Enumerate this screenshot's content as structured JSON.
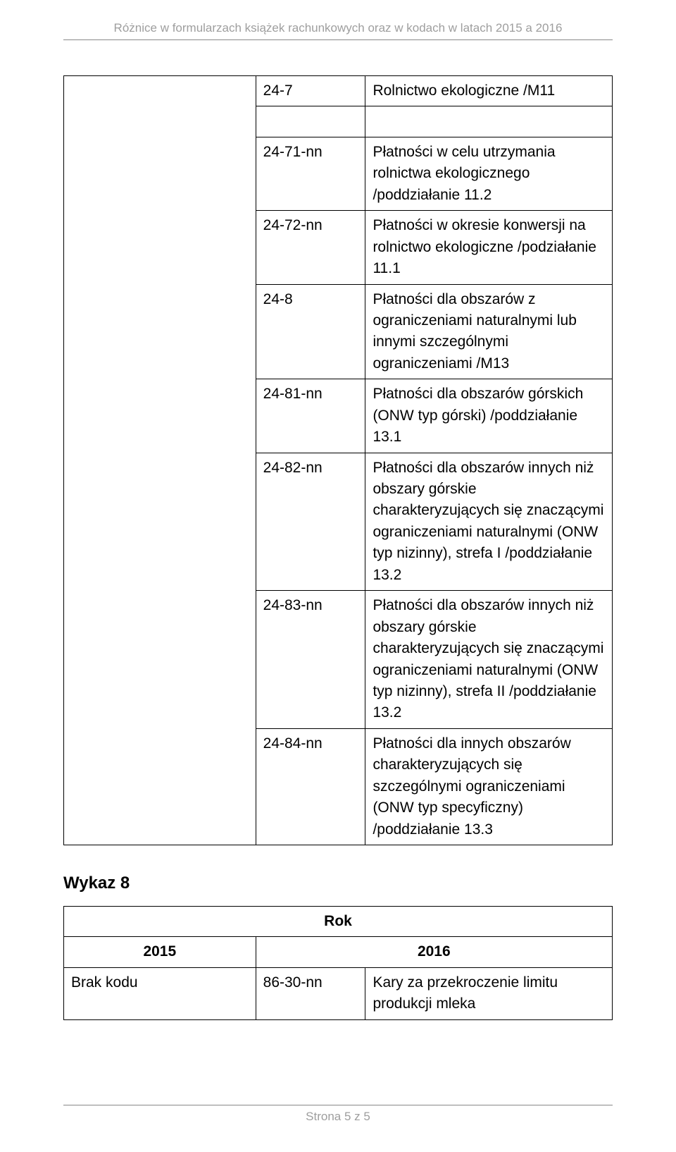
{
  "header": "Różnice w formularzach książek rachunkowych oraz w kodach w latach 2015 a 2016",
  "main_table": {
    "rows": [
      {
        "code": "24-7",
        "desc": "Rolnictwo ekologiczne /M11",
        "spacer_after": true
      },
      {
        "code": "24-71-nn",
        "desc": "Płatności w celu utrzymania rolnictwa ekologicznego /poddziałanie 11.2"
      },
      {
        "code": "24-72-nn",
        "desc": "Płatności w okresie konwersji na rolnictwo ekologiczne /podziałanie 11.1"
      },
      {
        "code": "24-8",
        "desc": "Płatności dla obszarów z ograniczeniami naturalnymi lub innymi szczególnymi ograniczeniami /M13"
      },
      {
        "code": "24-81-nn",
        "desc": "Płatności dla obszarów górskich (ONW typ górski) /poddziałanie 13.1"
      },
      {
        "code": "24-82-nn",
        "desc": "Płatności dla obszarów innych niż obszary górskie charakteryzujących się znaczącymi ograniczeniami naturalnymi (ONW typ nizinny), strefa I /poddziałanie 13.2"
      },
      {
        "code": "24-83-nn",
        "desc": "Płatności dla obszarów innych niż obszary górskie charakteryzujących się znaczącymi ograniczeniami naturalnymi (ONW typ nizinny), strefa II /poddziałanie 13.2"
      },
      {
        "code": "24-84-nn",
        "desc": "Płatności dla innych obszarów charakteryzujących się szczególnymi ograniczeniami (ONW typ specyficzny) /poddziałanie 13.3"
      }
    ]
  },
  "section_title": "Wykaz 8",
  "year_table": {
    "rok": "Rok",
    "y2015": "2015",
    "y2016": "2016",
    "left": "Brak kodu",
    "code": "86-30-nn",
    "desc": "Kary za przekroczenie limitu produkcji mleka"
  },
  "footer": "Strona 5 z 5"
}
